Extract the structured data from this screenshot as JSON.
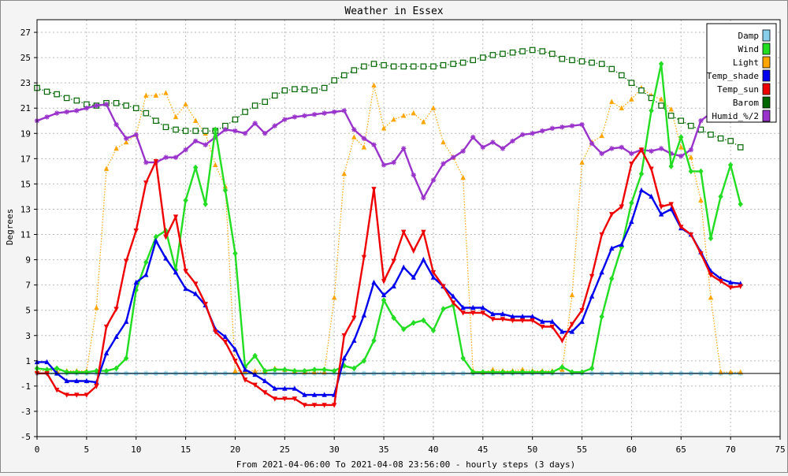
{
  "chart_data": {
    "type": "line",
    "title": "Weather in Essex",
    "xlabel": "From 2021-04-06:00 To 2021-04-08 23:56:00 - hourly steps (3 days)",
    "ylabel": "Degrees",
    "xlim": [
      0,
      75
    ],
    "ylim": [
      -5,
      28
    ],
    "xticks": [
      0,
      5,
      10,
      15,
      20,
      25,
      30,
      35,
      40,
      45,
      50,
      55,
      60,
      65,
      70,
      75
    ],
    "yticks": [
      -5,
      -3,
      -1,
      1,
      3,
      5,
      7,
      9,
      11,
      13,
      15,
      17,
      19,
      21,
      23,
      25,
      27
    ],
    "grid": true,
    "legend": "top-right",
    "series": [
      {
        "name": "Damp",
        "color": "#87ceeb",
        "marker": "star",
        "values": [
          0,
          0,
          0,
          0,
          0,
          0,
          0,
          0,
          0,
          0,
          0,
          0,
          0,
          0,
          0,
          0,
          0,
          0,
          0,
          0,
          0,
          0,
          0,
          0,
          0,
          0,
          0,
          0,
          0,
          0,
          0,
          0,
          0,
          0,
          0,
          0,
          0,
          0,
          0,
          0,
          0,
          0,
          0,
          0,
          0,
          0,
          0,
          0,
          0,
          0,
          0,
          0,
          0,
          0,
          0,
          0,
          0,
          0,
          0,
          0,
          0,
          0,
          0,
          0,
          0,
          0,
          0,
          0,
          0,
          0,
          0,
          0
        ]
      },
      {
        "name": "Wind",
        "color": "#22dd22",
        "marker": "diamond",
        "values": [
          0.4,
          0.3,
          0.4,
          0.1,
          0.1,
          0.1,
          0.2,
          0.2,
          0.4,
          1.2,
          6.6,
          8.8,
          10.8,
          11.3,
          8.2,
          13.7,
          16.3,
          13.4,
          19.3,
          14.5,
          9.5,
          0.5,
          1.4,
          0.2,
          0.3,
          0.3,
          0.2,
          0.2,
          0.3,
          0.3,
          0.2,
          0.6,
          0.4,
          1.0,
          2.6,
          5.8,
          4.4,
          3.5,
          4.0,
          4.2,
          3.4,
          5.1,
          5.4,
          1.2,
          0.1,
          0.1,
          0.1,
          0.1,
          0.1,
          0.1,
          0.1,
          0.1,
          0.1,
          0.5,
          0.1,
          0.1,
          0.4,
          4.5,
          7.5,
          10.0,
          13.5,
          15.8,
          20.8,
          24.5,
          16.4,
          18.7,
          16.0,
          16.0,
          10.7,
          14.0,
          16.5,
          13.4
        ]
      },
      {
        "name": "Light",
        "color": "#ffa500",
        "marker": "triangle",
        "dotted": true,
        "values": [
          0.2,
          0.2,
          0.2,
          0.2,
          0.2,
          0.2,
          5.2,
          16.2,
          17.8,
          18.3,
          18.9,
          22.0,
          22.0,
          22.2,
          20.3,
          21.3,
          20.0,
          19.0,
          16.5,
          14.8,
          0.2,
          0.2,
          0.2,
          0.2,
          0.4,
          0.3,
          0.2,
          0.1,
          0.1,
          0.1,
          6.0,
          15.8,
          18.7,
          17.9,
          22.8,
          19.4,
          20.1,
          20.4,
          20.6,
          19.9,
          21.0,
          18.3,
          17.1,
          15.5,
          0.2,
          0.1,
          0.3,
          0.2,
          0.2,
          0.3,
          0.2,
          0.2,
          0.2,
          0.3,
          6.2,
          16.7,
          18.3,
          18.8,
          21.5,
          21.0,
          21.7,
          22.6,
          22.0,
          21.7,
          20.9,
          17.9,
          17.1,
          13.7,
          6.0,
          0.1,
          0.1,
          0.1
        ]
      },
      {
        "name": "Temp_shade",
        "color": "#0000ee",
        "marker": "triangle",
        "values": [
          0.9,
          0.9,
          0.0,
          -0.6,
          -0.6,
          -0.6,
          -0.7,
          1.6,
          2.9,
          4.1,
          7.2,
          7.8,
          10.5,
          9.1,
          8.0,
          6.7,
          6.3,
          5.4,
          3.5,
          2.9,
          1.9,
          0.3,
          -0.1,
          -0.6,
          -1.2,
          -1.2,
          -1.2,
          -1.7,
          -1.7,
          -1.7,
          -1.7,
          1.2,
          2.6,
          4.6,
          7.2,
          6.2,
          6.9,
          8.4,
          7.6,
          9.0,
          7.6,
          6.9,
          6.1,
          5.2,
          5.2,
          5.2,
          4.7,
          4.7,
          4.5,
          4.5,
          4.5,
          4.1,
          4.1,
          3.3,
          3.3,
          4.1,
          6.1,
          8.0,
          9.9,
          10.2,
          12.0,
          14.5,
          14.0,
          12.6,
          13.0,
          11.5,
          11.0,
          9.6,
          8.1,
          7.5,
          7.2,
          7.1
        ]
      },
      {
        "name": "Temp_sun",
        "color": "#ee0000",
        "marker": "triangle-down",
        "values": [
          0.0,
          0.0,
          -1.3,
          -1.7,
          -1.7,
          -1.7,
          -1.0,
          3.7,
          5.1,
          8.9,
          11.3,
          15.1,
          16.8,
          10.8,
          12.4,
          8.1,
          7.1,
          5.5,
          3.3,
          2.5,
          1.0,
          -0.5,
          -0.9,
          -1.5,
          -2.0,
          -2.0,
          -2.0,
          -2.5,
          -2.5,
          -2.5,
          -2.5,
          3.0,
          4.4,
          9.2,
          14.6,
          7.3,
          8.9,
          11.2,
          9.7,
          11.2,
          8.0,
          6.9,
          5.6,
          4.8,
          4.8,
          4.8,
          4.3,
          4.3,
          4.2,
          4.2,
          4.2,
          3.7,
          3.7,
          2.6,
          3.9,
          5.0,
          7.7,
          11.0,
          12.6,
          13.2,
          16.6,
          17.7,
          16.2,
          13.2,
          13.4,
          11.6,
          11.0,
          9.5,
          7.8,
          7.3,
          6.8,
          6.9
        ]
      },
      {
        "name": "Barom",
        "color": "#006600",
        "marker": "square",
        "dotted": true,
        "values": [
          22.6,
          22.3,
          22.1,
          21.8,
          21.6,
          21.3,
          21.2,
          21.4,
          21.4,
          21.2,
          21.0,
          20.6,
          20.0,
          19.5,
          19.3,
          19.2,
          19.2,
          19.2,
          19.2,
          19.6,
          20.1,
          20.7,
          21.2,
          21.5,
          22.0,
          22.4,
          22.5,
          22.5,
          22.4,
          22.6,
          23.2,
          23.6,
          24.0,
          24.3,
          24.5,
          24.4,
          24.3,
          24.3,
          24.3,
          24.3,
          24.3,
          24.4,
          24.5,
          24.6,
          24.8,
          25.0,
          25.2,
          25.3,
          25.4,
          25.5,
          25.6,
          25.5,
          25.3,
          24.9,
          24.8,
          24.7,
          24.6,
          24.5,
          24.1,
          23.6,
          23.0,
          22.4,
          21.8,
          21.2,
          20.4,
          20.0,
          19.6,
          19.3,
          18.9,
          18.6,
          18.4,
          17.9
        ]
      },
      {
        "name": "Humid_%/2",
        "color": "#9933cc",
        "marker": "star",
        "values": [
          20.0,
          20.3,
          20.6,
          20.7,
          20.8,
          21.0,
          21.2,
          21.3,
          19.7,
          18.6,
          18.9,
          16.7,
          16.7,
          17.1,
          17.1,
          17.7,
          18.4,
          18.1,
          18.7,
          19.3,
          19.2,
          19.0,
          19.8,
          19.0,
          19.6,
          20.1,
          20.3,
          20.4,
          20.5,
          20.6,
          20.7,
          20.8,
          19.3,
          18.6,
          18.1,
          16.5,
          16.7,
          17.8,
          15.7,
          13.9,
          15.3,
          16.6,
          17.1,
          17.6,
          18.7,
          17.9,
          18.3,
          17.8,
          18.4,
          18.9,
          19.0,
          19.2,
          19.4,
          19.5,
          19.6,
          19.7,
          18.2,
          17.4,
          17.8,
          17.9,
          17.4,
          17.7,
          17.6,
          17.8,
          17.4,
          17.2,
          17.7,
          20.0,
          20.6,
          20.9,
          21.1,
          21.3
        ]
      }
    ]
  }
}
